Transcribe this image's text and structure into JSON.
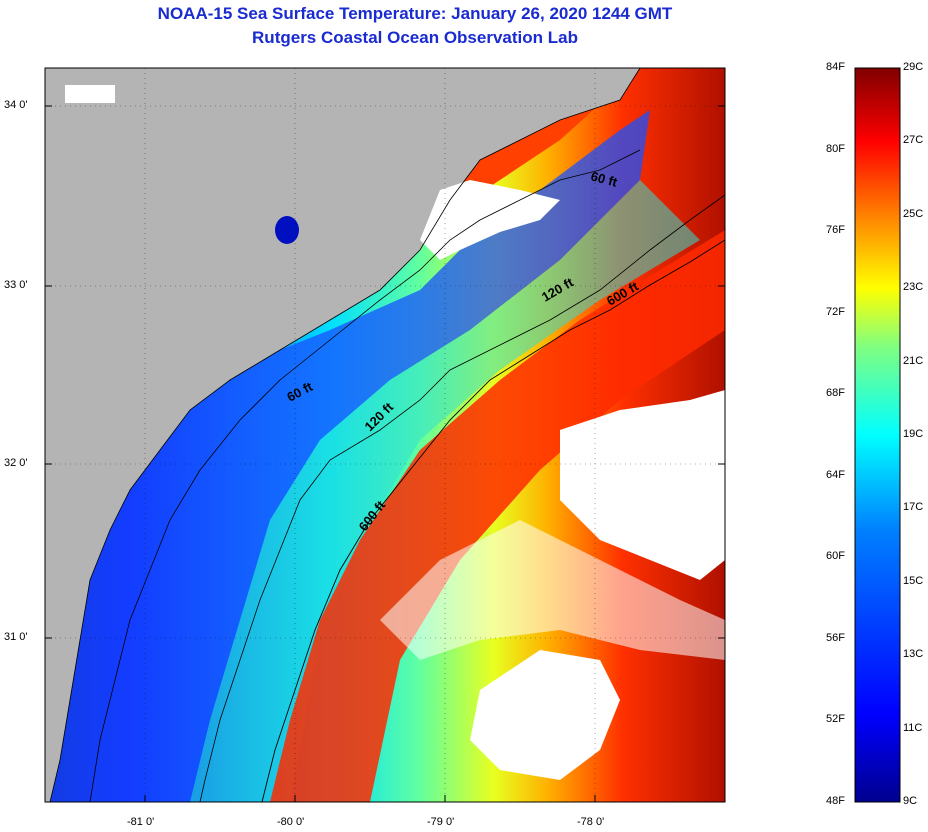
{
  "header": {
    "title": "NOAA-15 Sea Surface Temperature:  January 26, 2020 1244 GMT",
    "subtitle": "Rutgers Coastal Ocean Observation Lab"
  },
  "map": {
    "lat_range": [
      30.2,
      34.2
    ],
    "lon_range": [
      -81.5,
      -77.1
    ],
    "lat_ticks": [
      {
        "value": 34.0,
        "label": "34 0'"
      },
      {
        "value": 33.0,
        "label": "33 0'"
      },
      {
        "value": 32.0,
        "label": "32 0'"
      },
      {
        "value": 31.0,
        "label": "31 0'"
      }
    ],
    "lon_ticks": [
      {
        "value": -81.0,
        "label": "-81 0'"
      },
      {
        "value": -80.0,
        "label": "-80 0'"
      },
      {
        "value": -79.0,
        "label": "-79 0'"
      },
      {
        "value": -78.0,
        "label": "-78 0'"
      }
    ],
    "isobath_labels": [
      {
        "text": "60 ft",
        "id": "iso-60-north"
      },
      {
        "text": "60 ft",
        "id": "iso-60-south"
      },
      {
        "text": "120 ft",
        "id": "iso-120-north"
      },
      {
        "text": "120 ft",
        "id": "iso-120-south"
      },
      {
        "text": "600 ft",
        "id": "iso-600-north"
      },
      {
        "text": "600 ft",
        "id": "iso-600-south"
      }
    ],
    "colors": {
      "land": "#b4b4b4",
      "cloud": "#ffffff",
      "contour": "#000000"
    }
  },
  "colorbar": {
    "fahrenheit_labels": [
      "84F",
      "80F",
      "76F",
      "72F",
      "68F",
      "64F",
      "60F",
      "56F",
      "52F",
      "48F"
    ],
    "celsius_labels": [
      "29C",
      "27C",
      "25C",
      "23C",
      "21C",
      "19C",
      "17C",
      "15C",
      "13C",
      "11C",
      "9C"
    ],
    "gradient_stops": [
      "#00008f",
      "#0000ff",
      "#0080ff",
      "#00ffff",
      "#80ff80",
      "#ffff00",
      "#ff8000",
      "#ff0000",
      "#800000"
    ]
  }
}
